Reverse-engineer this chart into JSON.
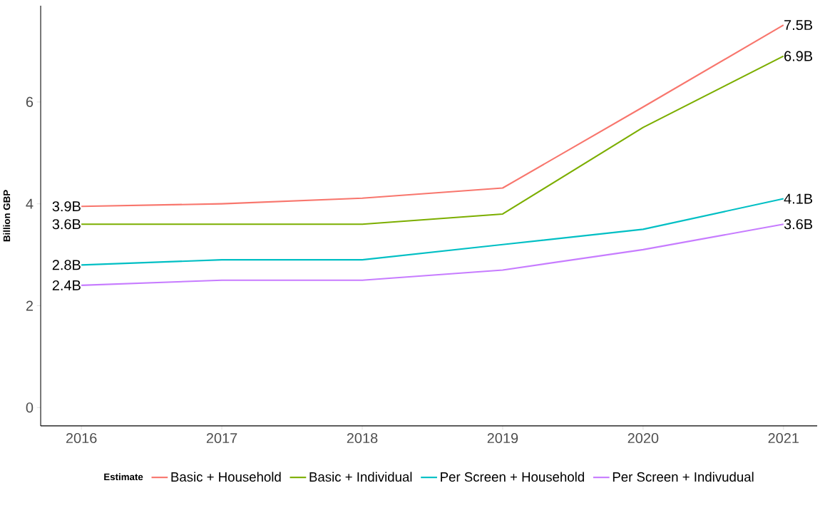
{
  "chart_data": {
    "type": "line",
    "ylabel": "Billion GBP",
    "legend_title": "Estimate",
    "categories": [
      "2016",
      "2017",
      "2018",
      "2019",
      "2020",
      "2021"
    ],
    "series": [
      {
        "name": "Basic + Household",
        "color": "#f8766d",
        "values": [
          3.95,
          4.0,
          4.11,
          4.31,
          5.9,
          7.51
        ],
        "value_labels": [
          "3.9B",
          null,
          null,
          null,
          null,
          "7.5B"
        ]
      },
      {
        "name": "Basic + Individual",
        "color": "#7cae00",
        "values": [
          3.6,
          3.6,
          3.6,
          3.8,
          5.5,
          6.9
        ],
        "value_labels": [
          "3.6B",
          null,
          null,
          null,
          null,
          "6.9B"
        ]
      },
      {
        "name": "Per Screen + Household",
        "color": "#00bfc4",
        "values": [
          2.8,
          2.9,
          2.9,
          3.2,
          3.5,
          4.1
        ],
        "value_labels": [
          "2.8B",
          null,
          null,
          null,
          null,
          "4.1B"
        ]
      },
      {
        "name": "Per Screen + Indivudual",
        "color": "#c77cff",
        "values": [
          2.4,
          2.5,
          2.5,
          2.7,
          3.1,
          3.6
        ],
        "value_labels": [
          "2.4B",
          null,
          null,
          null,
          null,
          "3.6B"
        ]
      }
    ],
    "ylim": [
      -0.36,
      7.89
    ],
    "yticks": [
      0,
      2,
      4,
      6
    ],
    "grid": false,
    "legend": "bottom",
    "marker": "none",
    "line_style": "solid"
  }
}
